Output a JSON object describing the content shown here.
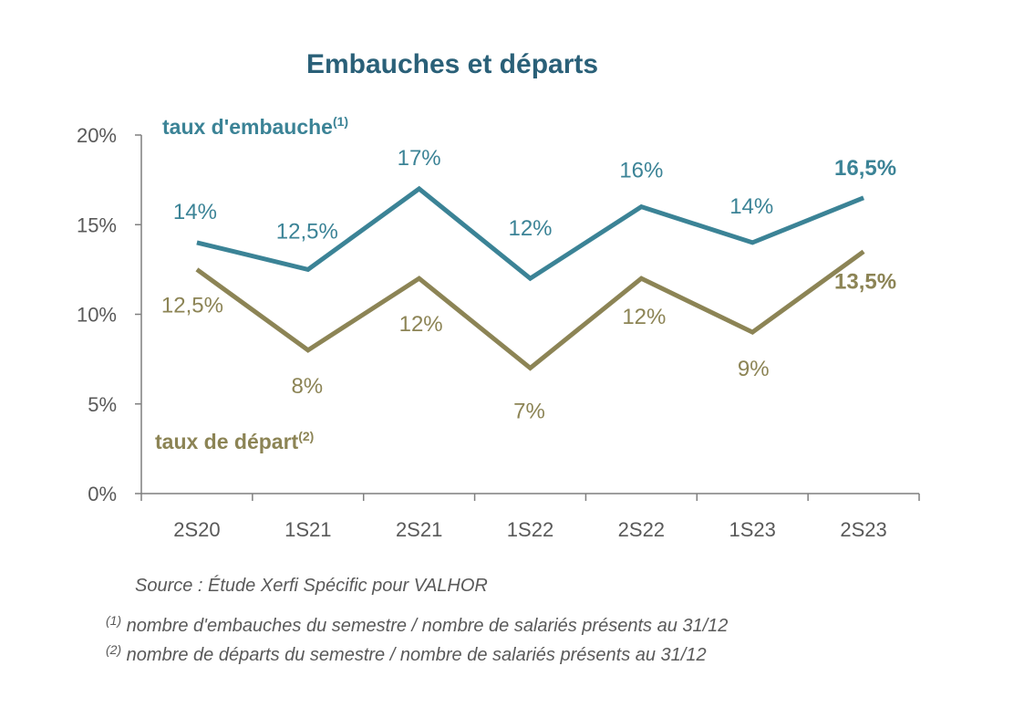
{
  "chart_data": {
    "type": "line",
    "title": "Embauches et départs",
    "categories": [
      "2S20",
      "1S21",
      "2S21",
      "1S22",
      "2S22",
      "1S23",
      "2S23"
    ],
    "ylim": [
      0,
      20
    ],
    "yticks": [
      0,
      5,
      10,
      15,
      20
    ],
    "ytick_labels": [
      "0%",
      "5%",
      "10%",
      "15%",
      "20%"
    ],
    "grid": false,
    "series": [
      {
        "name": "taux d'embauche",
        "name_sup": "(1)",
        "color": "#3b8396",
        "values": [
          14,
          12.5,
          17,
          12,
          16,
          14,
          16.5
        ],
        "labels": [
          "14%",
          "12,5%",
          "17%",
          "12%",
          "16%",
          "14%",
          "16,5%"
        ]
      },
      {
        "name": "taux de départ",
        "name_sup": "(2)",
        "color": "#8c8455",
        "values": [
          12.5,
          8,
          12,
          7,
          12,
          9,
          13.5
        ],
        "labels": [
          "12,5%",
          "8%",
          "12%",
          "7%",
          "12%",
          "9%",
          "13,5%"
        ]
      }
    ]
  },
  "notes": {
    "source": "Source : Étude Xerfi Spécific pour VALHOR",
    "note1_mark": "(1)",
    "note1": " nombre d'embauches du semestre / nombre de salariés présents au 31/12",
    "note2_mark": "(2)",
    "note2": " nombre de départs du semestre / nombre de salariés présents au 31/12"
  }
}
